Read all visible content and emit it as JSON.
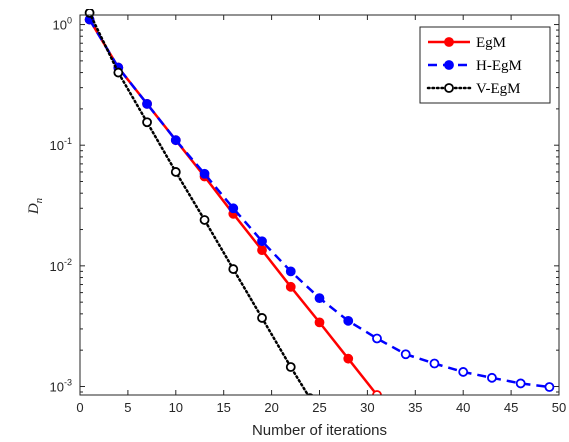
{
  "chart_data": {
    "type": "line",
    "xlabel": "Number of iterations",
    "ylabel_base": "D",
    "ylabel_sub": "n",
    "xlim": [
      0,
      50
    ],
    "xticks": [
      0,
      5,
      10,
      15,
      20,
      25,
      30,
      35,
      40,
      45,
      50
    ],
    "ylim": [
      0.00085,
      1.2
    ],
    "yscale": "log",
    "yticks": [
      {
        "value": 1,
        "base": "10",
        "exp": "0"
      },
      {
        "value": 0.1,
        "base": "10",
        "exp": "-1"
      },
      {
        "value": 0.01,
        "base": "10",
        "exp": "-2"
      },
      {
        "value": 0.001,
        "base": "10",
        "exp": "-3"
      }
    ],
    "legend_position": "top-right",
    "series": [
      {
        "name": "EgM",
        "color": "#ff0000",
        "line_style": "solid",
        "marker_fill": "filled",
        "x": [
          1,
          4,
          7,
          10,
          13,
          16,
          19,
          22,
          25,
          28,
          31
        ],
        "y": [
          1.1,
          0.44,
          0.22,
          0.11,
          0.055,
          0.027,
          0.0135,
          0.0067,
          0.0034,
          0.0017,
          0.00085
        ]
      },
      {
        "name": "H-EgM",
        "color": "#0000ff",
        "line_style": "dashed",
        "marker_fill": "filled-then-open",
        "x": [
          1,
          4,
          7,
          10,
          13,
          16,
          19,
          22,
          25,
          28,
          31,
          34,
          37,
          40,
          43,
          46,
          49
        ],
        "y": [
          1.1,
          0.44,
          0.22,
          0.11,
          0.058,
          0.03,
          0.016,
          0.009,
          0.0054,
          0.0035,
          0.0025,
          0.00185,
          0.00155,
          0.00132,
          0.00118,
          0.00106,
          0.00099
        ]
      },
      {
        "name": "V-EgM",
        "color": "#000000",
        "line_style": "dotted",
        "marker_fill": "open",
        "x": [
          1,
          4,
          7,
          10,
          13,
          16,
          19,
          22,
          24
        ],
        "y": [
          1.25,
          0.4,
          0.155,
          0.06,
          0.024,
          0.0094,
          0.0037,
          0.00145,
          0.0008
        ]
      }
    ]
  }
}
